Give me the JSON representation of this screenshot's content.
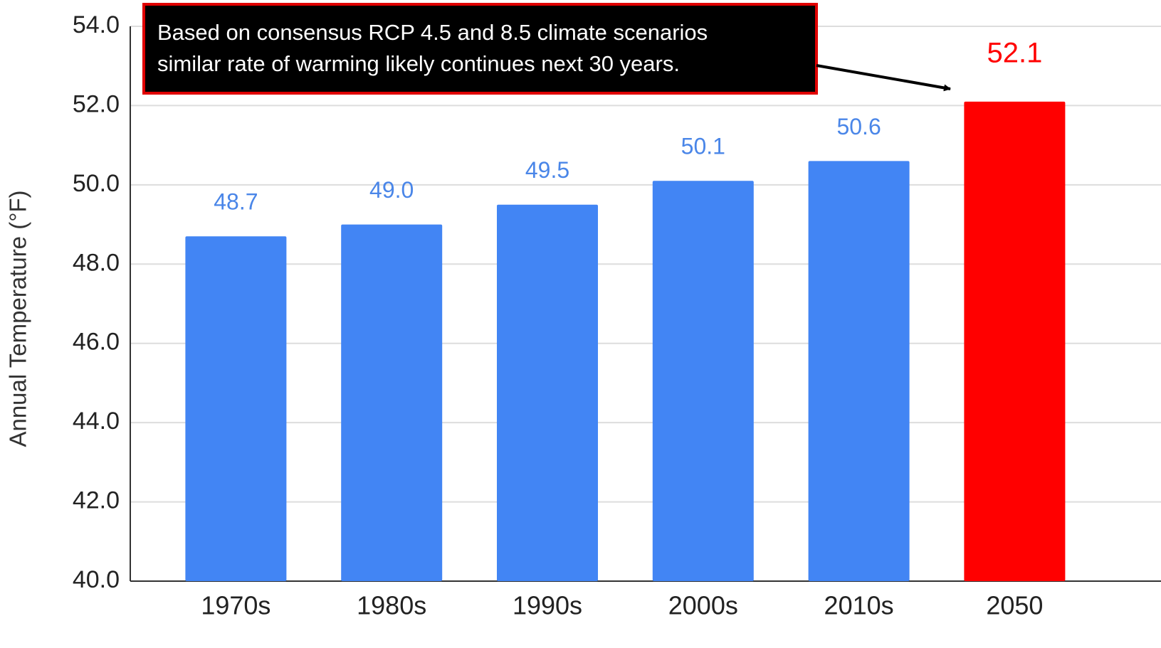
{
  "chart_data": {
    "type": "bar",
    "y_label": "Annual Temperature (°F)",
    "annotation": [
      "Based on consensus RCP 4.5 and 8.5 climate scenarios",
      "similar rate of warming likely continues next 30 years."
    ],
    "categories": [
      "1970s",
      "1980s",
      "1990s",
      "2000s",
      "2010s",
      "2050"
    ],
    "values": [
      48.7,
      49.0,
      49.5,
      50.1,
      50.6,
      52.1
    ],
    "value_labels": [
      "48.7",
      "49.0",
      "49.5",
      "50.1",
      "50.6",
      "52.1"
    ],
    "colors": [
      "#4285f4",
      "#4285f4",
      "#4285f4",
      "#4285f4",
      "#4285f4",
      "#ff0000"
    ],
    "label_colors": [
      "#4a86e8",
      "#4a86e8",
      "#4a86e8",
      "#4a86e8",
      "#4a86e8",
      "#ff0000"
    ],
    "ylim": [
      40,
      54
    ],
    "yticks": [
      {
        "value": 40,
        "label": "40.0"
      },
      {
        "value": 42,
        "label": "42.0"
      },
      {
        "value": 44,
        "label": "44.0"
      },
      {
        "value": 46,
        "label": "46.0"
      },
      {
        "value": 48,
        "label": "48.0"
      },
      {
        "value": 50,
        "label": "50.0"
      },
      {
        "value": 52,
        "label": "52.0"
      },
      {
        "value": 54,
        "label": "54.0"
      }
    ],
    "grid": true
  }
}
